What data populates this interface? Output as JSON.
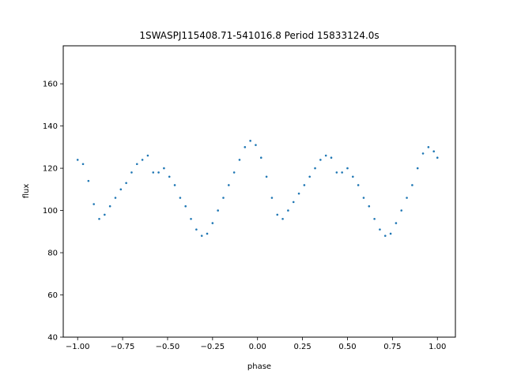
{
  "chart_data": {
    "type": "scatter",
    "title": "1SWASPJ115408.71-541016.8 Period 15833124.0s",
    "xlabel": "phase",
    "ylabel": "flux",
    "xlim": [
      -1.08,
      1.1
    ],
    "ylim": [
      40,
      178
    ],
    "xticks": [
      -1.0,
      -0.75,
      -0.5,
      -0.25,
      0.0,
      0.25,
      0.5,
      0.75,
      1.0
    ],
    "xtick_labels": [
      "−1.00",
      "−0.75",
      "−0.50",
      "−0.25",
      "0.00",
      "0.25",
      "0.50",
      "0.75",
      "1.00"
    ],
    "yticks": [
      40,
      60,
      80,
      100,
      120,
      140,
      160
    ],
    "ytick_labels": [
      "40",
      "60",
      "80",
      "100",
      "120",
      "140",
      "160"
    ],
    "grid": false,
    "marker_color": "#1f77b4",
    "series": [
      {
        "x": [
          -1.0,
          -0.97,
          -0.94,
          -0.91,
          -0.88,
          -0.85,
          -0.82,
          -0.79,
          -0.76,
          -0.73,
          -0.7,
          -0.67,
          -0.64,
          -0.61,
          -0.58,
          -0.55,
          -0.52,
          -0.49,
          -0.46,
          -0.43,
          -0.4,
          -0.37,
          -0.34,
          -0.31,
          -0.28,
          -0.25,
          -0.22,
          -0.19,
          -0.16,
          -0.13,
          -0.1,
          -0.07,
          -0.04,
          -0.01,
          0.02,
          0.05,
          0.08,
          0.11,
          0.14,
          0.17,
          0.2,
          0.23,
          0.26,
          0.29,
          0.32,
          0.35,
          0.38,
          0.41,
          0.44,
          0.47,
          0.5,
          0.53,
          0.56,
          0.59,
          0.62,
          0.65,
          0.68,
          0.71,
          0.74,
          0.77,
          0.8,
          0.83,
          0.86,
          0.89,
          0.92,
          0.95,
          0.98,
          1.0
        ],
        "y": [
          124,
          122,
          114,
          103,
          96,
          98,
          102,
          106,
          110,
          113,
          118,
          122,
          124,
          126,
          118,
          118,
          120,
          116,
          112,
          106,
          102,
          96,
          91,
          88,
          89,
          94,
          100,
          106,
          112,
          118,
          124,
          130,
          133,
          131,
          125,
          116,
          106,
          98,
          96,
          100,
          104,
          108,
          112,
          116,
          120,
          124,
          126,
          125,
          118,
          118,
          120,
          116,
          112,
          106,
          102,
          96,
          91,
          88,
          89,
          94,
          100,
          106,
          112,
          120,
          127,
          130,
          128,
          125
        ]
      }
    ]
  }
}
